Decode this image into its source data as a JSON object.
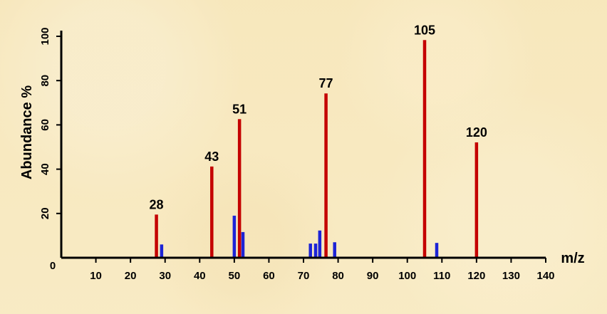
{
  "page": {
    "background": "#f8e9bf"
  },
  "chart_data": {
    "type": "bar",
    "xlabel": "m/z",
    "ylabel": "Abundance %",
    "xlim": [
      0,
      140
    ],
    "ylim": [
      0,
      100
    ],
    "x_ticks": [
      10,
      20,
      30,
      40,
      50,
      60,
      70,
      80,
      90,
      100,
      110,
      120,
      130,
      140
    ],
    "y_ticks": [
      0,
      20,
      40,
      60,
      80,
      100
    ],
    "grid": false,
    "series": [
      {
        "color": "#c40000",
        "points": [
          {
            "x": 27.5,
            "y": 19.5
          },
          {
            "x": 43.5,
            "y": 41.2
          },
          {
            "x": 51.5,
            "y": 62.6
          },
          {
            "x": 76.5,
            "y": 74.2
          },
          {
            "x": 105,
            "y": 98.3
          },
          {
            "x": 120,
            "y": 52.1
          }
        ]
      },
      {
        "color": "#1c23d6",
        "points": [
          {
            "x": 29,
            "y": 6.0
          },
          {
            "x": 50,
            "y": 19.0
          },
          {
            "x": 52.5,
            "y": 11.6
          },
          {
            "x": 72,
            "y": 6.4
          },
          {
            "x": 73.5,
            "y": 6.4
          },
          {
            "x": 74.7,
            "y": 12.3
          },
          {
            "x": 79,
            "y": 7.0
          },
          {
            "x": 108.5,
            "y": 6.7
          }
        ]
      }
    ],
    "labels": [
      {
        "text": "28",
        "x": 27.5,
        "y": 19.5
      },
      {
        "text": "43",
        "x": 43.5,
        "y": 41.2
      },
      {
        "text": "51",
        "x": 51.5,
        "y": 62.6
      },
      {
        "text": "77",
        "x": 76.5,
        "y": 74.2
      },
      {
        "text": "105",
        "x": 105,
        "y": 98.3
      },
      {
        "text": "120",
        "x": 120,
        "y": 52.1
      }
    ]
  }
}
